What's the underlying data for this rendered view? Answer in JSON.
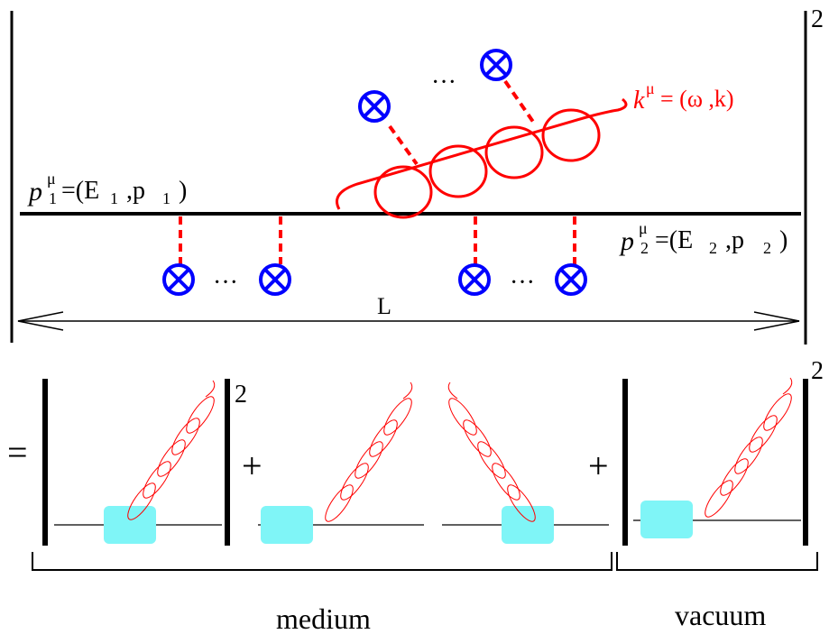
{
  "top": {
    "exponent": "2",
    "incoming": {
      "p": "p",
      "mu": "μ",
      "sub": "1",
      "rest": "=(E",
      "esub": "1",
      "comma": ",p",
      "psub": "1",
      "close": ")"
    },
    "outgoing": {
      "p": "p",
      "mu": "μ",
      "sub": "2",
      "rest": "=(E",
      "esub": "2",
      "comma": ",p",
      "psub": "2",
      "close": ")"
    },
    "gluon": {
      "k": "k",
      "mu": "μ",
      "rest": "= (ω ,k)"
    },
    "length": "L",
    "ellipsis": "···"
  },
  "bottom": {
    "equals": "=",
    "plus1": "+",
    "plus2": "+",
    "exponent1": "2",
    "exponent2": "2",
    "medium_label": "medium",
    "vacuum_label": "vacuum"
  },
  "colors": {
    "gluon": "#ff0000",
    "scattering_center": "#0000ff",
    "exchange": "#ff0000",
    "medium_box": "#7ff5f7",
    "line": "#000000"
  }
}
